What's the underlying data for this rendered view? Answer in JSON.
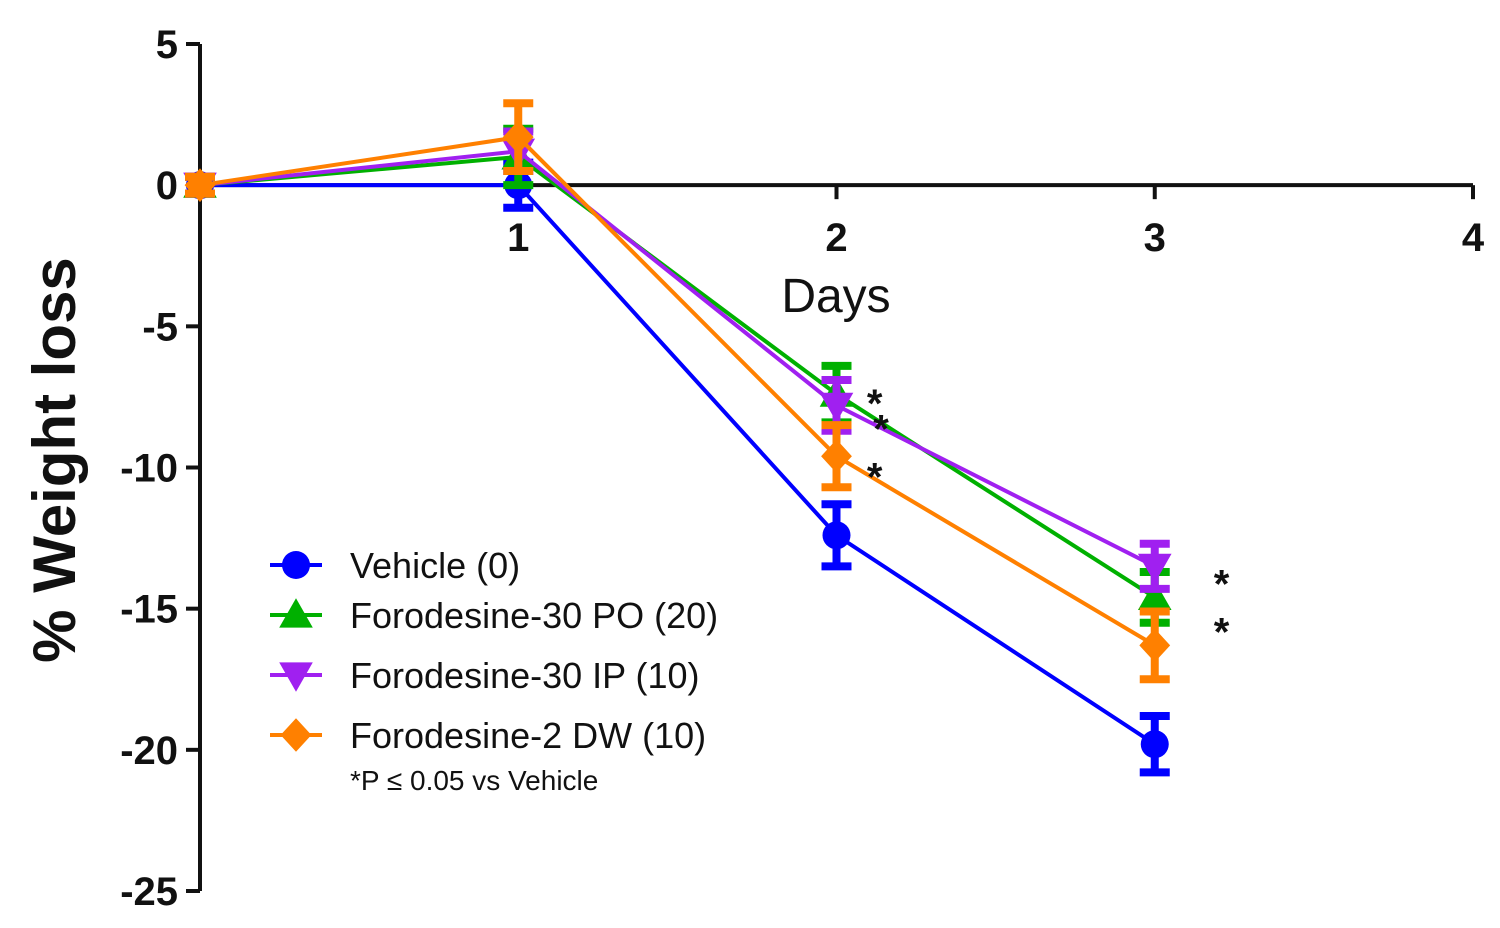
{
  "chart_data": {
    "type": "line",
    "title": "",
    "xlabel": "Days",
    "ylabel": "% Weight loss",
    "xlim": [
      0,
      4
    ],
    "ylim": [
      -25,
      5
    ],
    "xticks": [
      "1",
      "2",
      "3",
      "4"
    ],
    "yticks": [
      "5",
      "0",
      "-5",
      "-10",
      "-15",
      "-20",
      "-25"
    ],
    "grid": false,
    "legend_position": "bottom-left",
    "x": [
      0,
      1,
      2,
      3
    ],
    "series": [
      {
        "name": "Vehicle (0)",
        "color": "#0000ff",
        "marker": "circle",
        "values": [
          0,
          0,
          -12.4,
          -19.8
        ],
        "errors": [
          0.3,
          0.8,
          1.1,
          1.0
        ]
      },
      {
        "name": "Forodesine-30 PO (20)",
        "color": "#00b000",
        "marker": "triangle-up",
        "values": [
          0,
          1.0,
          -7.4,
          -14.6
        ],
        "errors": [
          0.3,
          1.0,
          1.0,
          0.9
        ]
      },
      {
        "name": "Forodesine-30 IP (10)",
        "color": "#a020f0",
        "marker": "triangle-down",
        "values": [
          0,
          1.2,
          -7.8,
          -13.5
        ],
        "errors": [
          0.3,
          0.7,
          0.9,
          0.8
        ]
      },
      {
        "name": "Forodesine-2 DW (10)",
        "color": "#ff8000",
        "marker": "diamond",
        "values": [
          0,
          1.7,
          -9.6,
          -16.3
        ],
        "errors": [
          0.3,
          1.2,
          1.1,
          1.2
        ]
      }
    ],
    "annotations": [
      {
        "text": "*",
        "x": 2.12,
        "y": -7.5
      },
      {
        "text": "*",
        "x": 2.14,
        "y": -8.4
      },
      {
        "text": "*",
        "x": 2.12,
        "y": -10.1
      },
      {
        "text": "*",
        "x": 3.21,
        "y": -13.9
      },
      {
        "text": "*",
        "x": 3.21,
        "y": -15.6
      }
    ],
    "footnote": "*P ≤ 0.05 vs Vehicle"
  }
}
